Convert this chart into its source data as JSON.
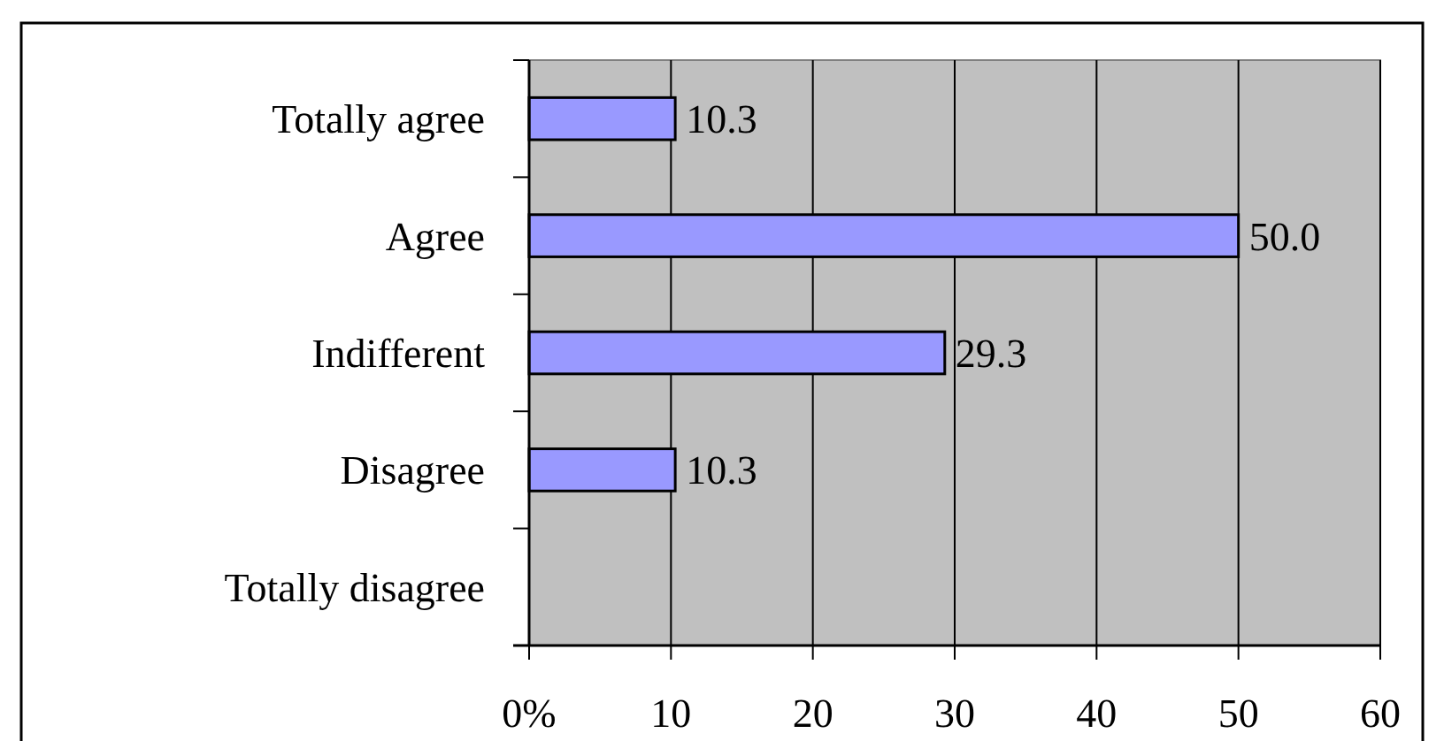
{
  "chart_data": {
    "type": "bar",
    "orientation": "horizontal",
    "categories": [
      "Totally agree",
      "Agree",
      "Indifferent",
      "Disagree",
      "Totally disagree"
    ],
    "values": [
      10.3,
      50.0,
      29.3,
      10.3,
      null
    ],
    "value_labels": [
      "10.3",
      "50.0",
      "29.3",
      "10.3",
      null
    ],
    "color": "#9999ff",
    "xlim": [
      0,
      60
    ],
    "xticks": [
      {
        "value": 0,
        "label": "0%"
      },
      10,
      20,
      30,
      40,
      50,
      60
    ],
    "grid": "x"
  }
}
